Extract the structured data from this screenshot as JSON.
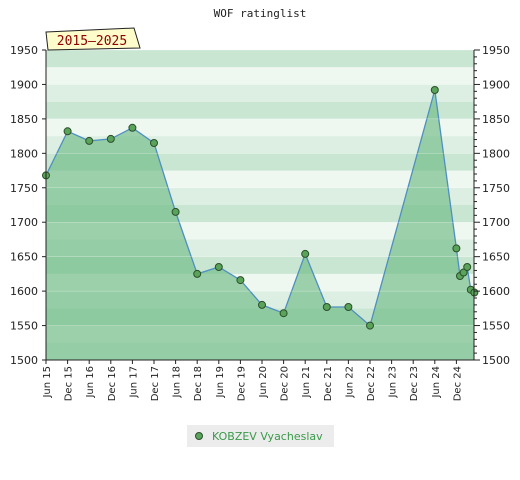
{
  "chart_data": {
    "type": "area",
    "title": "WOF ratinglist",
    "period_badge": "2015–2025",
    "x_tick_labels": [
      "Jun 15",
      "Dec 15",
      "Jun 16",
      "Dec 16",
      "Jun 17",
      "Dec 17",
      "Jun 18",
      "Dec 18",
      "Jun 19",
      "Dec 19",
      "Jun 20",
      "Dec 20",
      "Jun 21",
      "Dec 21",
      "Jun 22",
      "Dec 22",
      "Jun 23",
      "Dec 23",
      "Jun 24",
      "Dec 24"
    ],
    "y_ticks": [
      1500,
      1550,
      1600,
      1650,
      1700,
      1750,
      1800,
      1850,
      1900,
      1950
    ],
    "ylim": [
      1500,
      1950
    ],
    "series": [
      {
        "name": "KOBZEV Vyacheslav",
        "color": "#4f8fc0",
        "marker_color": "#5aa35a",
        "points": [
          {
            "x": "Jun 15",
            "y": 1768
          },
          {
            "x": "Dec 15",
            "y": 1832
          },
          {
            "x": "Jun 16",
            "y": 1818
          },
          {
            "x": "Dec 16",
            "y": 1821
          },
          {
            "x": "Jun 17",
            "y": 1837
          },
          {
            "x": "Dec 17",
            "y": 1815
          },
          {
            "x": "Jun 18",
            "y": 1715
          },
          {
            "x": "Dec 18",
            "y": 1625
          },
          {
            "x": "Jun 19",
            "y": 1635
          },
          {
            "x": "Dec 19",
            "y": 1616
          },
          {
            "x": "Jun 20",
            "y": 1580
          },
          {
            "x": "Dec 20",
            "y": 1568
          },
          {
            "x": "Jun 21",
            "y": 1654
          },
          {
            "x": "Dec 21",
            "y": 1577
          },
          {
            "x": "Jun 22",
            "y": 1577
          },
          {
            "x": "Dec 22",
            "y": 1550
          },
          {
            "x": "Jun 24",
            "y": 1892
          },
          {
            "x": "Dec 24",
            "y": 1662
          },
          {
            "x": "Jan 25",
            "y": 1622
          },
          {
            "x": "Feb 25",
            "y": 1627
          },
          {
            "x": "Mar 25",
            "y": 1635
          },
          {
            "x": "Apr 25",
            "y": 1602
          },
          {
            "x": "May 25",
            "y": 1598
          }
        ]
      }
    ],
    "grid": true,
    "legend_position": "bottom"
  },
  "colors": {
    "band_light": "#eef7f0",
    "band_mid": "#dcefe2",
    "band_dark": "#c9e6d2",
    "area_fill": "#6fbb85",
    "badge_fill": "#fffccc"
  }
}
